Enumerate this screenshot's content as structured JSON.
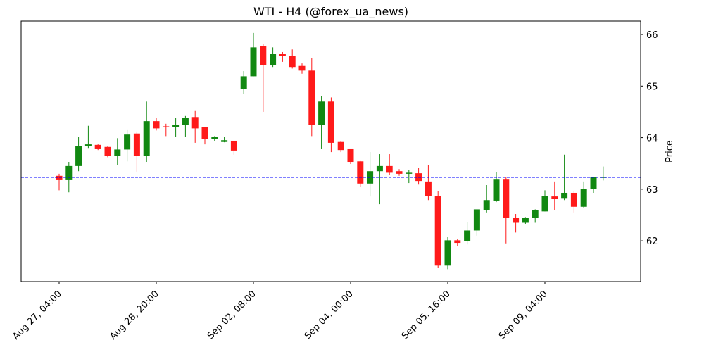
{
  "chart_data": {
    "type": "candlestick",
    "title": "WTI - H4 (@forex_ua_news)",
    "y_label": "Price",
    "categories": [
      "Aug 27, 04:00",
      null,
      null,
      null,
      null,
      null,
      null,
      null,
      null,
      null,
      "Aug 28, 20:00",
      null,
      null,
      null,
      null,
      null,
      null,
      null,
      null,
      null,
      "Sep 02, 08:00",
      null,
      null,
      null,
      null,
      null,
      null,
      null,
      null,
      null,
      "Sep 04, 00:00",
      null,
      null,
      null,
      null,
      null,
      null,
      null,
      null,
      null,
      "Sep 05, 16:00",
      null,
      null,
      null,
      null,
      null,
      null,
      null,
      null,
      null,
      "Sep 09, 04:00",
      null,
      null,
      null,
      null,
      null,
      null
    ],
    "open": [
      63.26,
      63.19,
      63.45,
      63.84,
      63.86,
      63.82,
      63.64,
      63.77,
      64.08,
      63.64,
      64.32,
      64.22,
      64.2,
      64.24,
      64.4,
      64.2,
      63.97,
      63.93,
      63.94,
      64.94,
      65.19,
      65.77,
      65.41,
      65.62,
      65.59,
      65.39,
      65.3,
      64.25,
      64.7,
      63.93,
      63.79,
      63.54,
      63.11,
      63.35,
      63.45,
      63.35,
      63.3,
      63.31,
      63.15,
      62.87,
      61.52,
      62.01,
      61.99,
      62.2,
      62.6,
      62.78,
      63.2,
      62.44,
      62.35,
      62.44,
      62.57,
      62.86,
      62.83,
      62.93,
      62.66,
      63.01,
      63.22
    ],
    "high": [
      63.3,
      63.53,
      64.01,
      64.23,
      63.87,
      63.84,
      63.99,
      64.16,
      64.12,
      64.7,
      64.38,
      64.27,
      64.38,
      64.42,
      64.53,
      64.2,
      64.03,
      64.01,
      63.94,
      65.29,
      66.03,
      65.82,
      65.75,
      65.66,
      65.71,
      65.44,
      65.54,
      64.81,
      64.78,
      63.94,
      63.79,
      63.56,
      63.72,
      63.68,
      63.68,
      63.39,
      63.38,
      63.41,
      63.47,
      62.96,
      62.07,
      62.04,
      62.37,
      62.61,
      63.08,
      63.34,
      63.24,
      62.52,
      62.46,
      62.61,
      62.98,
      63.15,
      63.67,
      62.96,
      63.15,
      63.23,
      63.44
    ],
    "low": [
      62.98,
      62.94,
      63.35,
      63.8,
      63.76,
      63.62,
      63.47,
      63.54,
      63.34,
      63.53,
      64.14,
      64.03,
      64.02,
      64.01,
      63.9,
      63.87,
      63.94,
      63.91,
      63.67,
      64.85,
      65.19,
      64.5,
      65.37,
      65.47,
      65.34,
      65.24,
      64.03,
      63.79,
      63.72,
      63.72,
      63.49,
      63.04,
      62.86,
      62.71,
      63.28,
      63.26,
      63.12,
      63.09,
      62.79,
      61.47,
      61.45,
      61.9,
      61.93,
      62.1,
      62.55,
      62.75,
      61.95,
      62.16,
      62.33,
      62.35,
      62.57,
      62.6,
      62.79,
      62.55,
      62.63,
      62.93,
      63.17
    ],
    "close": [
      63.19,
      63.45,
      63.84,
      63.87,
      63.79,
      63.64,
      63.77,
      64.06,
      63.64,
      64.32,
      64.18,
      64.2,
      64.24,
      64.39,
      64.18,
      63.97,
      64.02,
      63.95,
      63.75,
      65.19,
      65.75,
      65.41,
      65.62,
      65.58,
      65.37,
      65.3,
      64.25,
      64.7,
      63.9,
      63.76,
      63.53,
      63.11,
      63.35,
      63.45,
      63.32,
      63.3,
      63.32,
      63.16,
      62.87,
      61.52,
      62.01,
      61.96,
      62.2,
      62.61,
      62.79,
      63.2,
      62.44,
      62.35,
      62.44,
      62.59,
      62.87,
      62.81,
      62.93,
      62.66,
      63.01,
      63.23,
      63.24
    ],
    "up_color": "#118811",
    "down_color": "#ff1a1a",
    "hline": {
      "value": 63.23,
      "color": "#0000ff"
    },
    "ylim": [
      61.21,
      66.26
    ],
    "yticks": [
      62,
      63,
      64,
      65,
      66
    ]
  }
}
